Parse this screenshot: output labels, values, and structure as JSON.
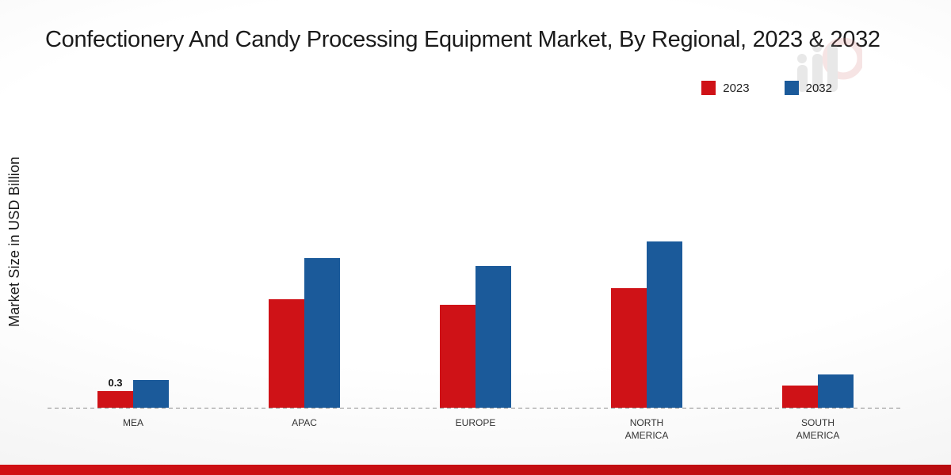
{
  "title": "Confectionery And Candy Processing Equipment Market, By Regional, 2023 & 2032",
  "y_axis_label": "Market Size in USD Billion",
  "legend": [
    {
      "label": "2023"
    },
    {
      "label": "2032"
    }
  ],
  "colors": {
    "series_2023": "#cf1217",
    "series_2032": "#1b5a9a",
    "footer_band": "#c30d0d"
  },
  "chart_data": {
    "type": "bar",
    "title": "Confectionery And Candy Processing Equipment Market, By Regional, 2023 & 2032",
    "xlabel": "",
    "ylabel": "Market Size in USD Billion",
    "categories": [
      "MEA",
      "APAC",
      "EUROPE",
      "NORTH AMERICA",
      "SOUTH AMERICA"
    ],
    "series": [
      {
        "name": "2023",
        "color": "#cf1217",
        "values": [
          0.3,
          1.95,
          1.85,
          2.15,
          0.4
        ]
      },
      {
        "name": "2032",
        "color": "#1b5a9a",
        "values": [
          0.5,
          2.7,
          2.55,
          3.0,
          0.6
        ]
      }
    ],
    "bar_labels": [
      {
        "category_index": 0,
        "series_index": 0,
        "text": "0.3"
      }
    ],
    "ylim": [
      0,
      3.3
    ],
    "grid": false,
    "legend_position": "top-right",
    "baseline_style": "dashed"
  }
}
